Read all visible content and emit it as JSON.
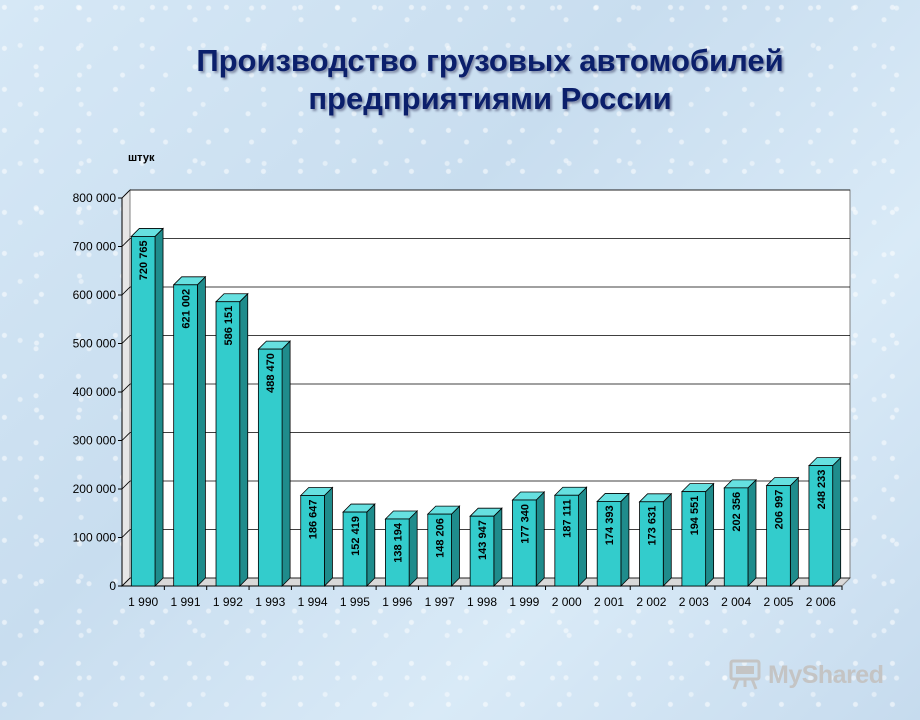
{
  "title_line1": "Производство грузовых автомобилей",
  "title_line2": "предприятиями России",
  "brand": "MyShared",
  "chart_data": {
    "type": "bar",
    "units": "штук",
    "categories": [
      "1 990",
      "1 991",
      "1 992",
      "1 993",
      "1 994",
      "1 995",
      "1 996",
      "1 997",
      "1 998",
      "1 999",
      "2 000",
      "2 001",
      "2 002",
      "2 003",
      "2 004",
      "2 005",
      "2 006"
    ],
    "values": [
      720765,
      621002,
      586151,
      488470,
      186647,
      152419,
      138194,
      148206,
      143947,
      177340,
      187111,
      174393,
      173631,
      194551,
      202356,
      206997,
      248233
    ],
    "value_labels": [
      "720 765",
      "621 002",
      "586 151",
      "488 470",
      "186 647",
      "152 419",
      "138 194",
      "148 206",
      "143 947",
      "177 340",
      "187 111",
      "174 393",
      "173 631",
      "194 551",
      "202 356",
      "206 997",
      "248 233"
    ],
    "y_ticks": [
      0,
      100000,
      200000,
      300000,
      400000,
      500000,
      600000,
      700000,
      800000
    ],
    "y_tick_labels": [
      "0",
      "100 000",
      "200 000",
      "300 000",
      "400 000",
      "500 000",
      "600 000",
      "700 000",
      "800 000"
    ],
    "ylim": [
      0,
      800000
    ],
    "grid": true,
    "colors": {
      "bar_front": "#33cccc",
      "bar_side": "#1f8c8c",
      "bar_top": "#66e0e0",
      "plot_bg": "#ffffff",
      "title": "#0b1f6b"
    }
  }
}
